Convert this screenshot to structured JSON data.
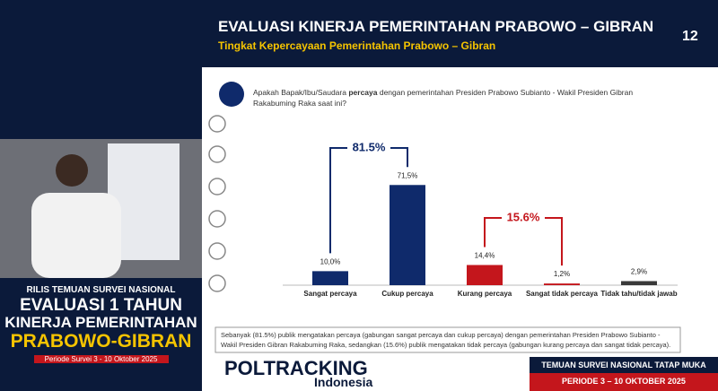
{
  "broadcast": {
    "title": "RILIS TEMUAN SURVEI NASIONAL",
    "line1": "EVALUASI 1 TAHUN",
    "line2": "KINERJA PEMERINTAHAN",
    "line3": "PRABOWO-GIBRAN",
    "period": "Periode Survei 3 - 10 Oktober 2025"
  },
  "slide": {
    "title": "EVALUASI KINERJA PEMERINTAHAN PRABOWO – GIBRAN",
    "subtitle": "Tingkat Kepercayaan Pemerintahan Prabowo – Gibran",
    "page": "12",
    "question": [
      "Apakah Bapak/Ibu/Saudara ",
      "percaya",
      " dengan pemerintahan Presiden Prabowo Subianto  - Wakil Presiden Gibran Rakabuming Raka saat ini?"
    ],
    "note": "Sebanyak (81.5%) publik mengatakan percaya (gabungan sangat percaya dan cukup percaya) dengan pemerintahan Presiden Prabowo Subianto  - Wakil Presiden Gibran Rakabuming Raka, sedangkan (15.6%) publik mengatakan tidak percaya (gabungan kurang percaya dan sangat tidak percaya).",
    "logo": "POLTRACKING",
    "logo_sub": "Indonesia",
    "banner": "TEMUAN SURVEI NASIONAL TATAP MUKA",
    "banner_period": "PERIODE 3 – 10 OKTOBER 2025"
  },
  "chart_data": {
    "type": "bar",
    "categories": [
      "Sangat percaya",
      "Cukup percaya",
      "Kurang percaya",
      "Sangat tidak percaya",
      "Tidak tahu/tidak jawab"
    ],
    "values": [
      10.0,
      71.5,
      14.4,
      1.2,
      2.9
    ],
    "value_labels": [
      "10,0%",
      "71,5%",
      "14,4%",
      "1,2%",
      "2,9%"
    ],
    "colors": [
      "#0f2a6b",
      "#0f2a6b",
      "#c4161c",
      "#c4161c",
      "#3a3a3a"
    ],
    "ylim": [
      0,
      80
    ],
    "annotations": [
      {
        "text": "81.5%",
        "color": "#0f2a6b"
      },
      {
        "text": "15.6%",
        "color": "#c4161c"
      }
    ]
  }
}
